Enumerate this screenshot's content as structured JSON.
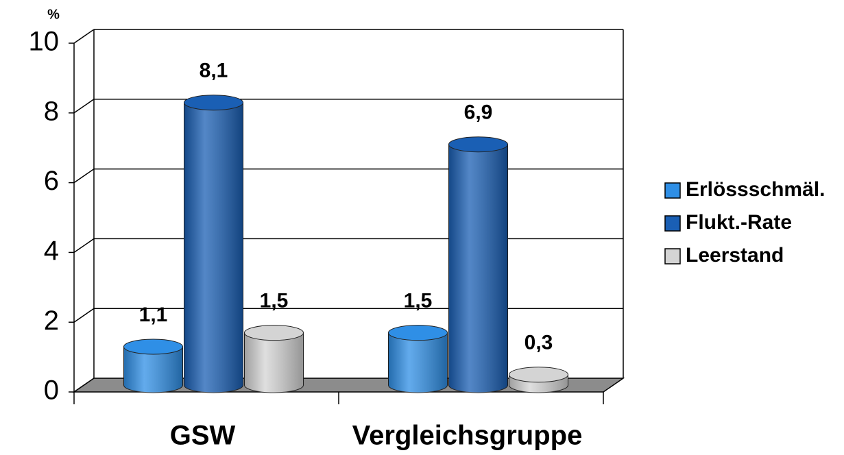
{
  "chart_data": {
    "type": "bar3d",
    "y_unit": "%",
    "categories": [
      "GSW",
      "Vergleichsgruppe"
    ],
    "series": [
      {
        "name": "Erlössschmäl.",
        "color": "#2f8fe6",
        "values": [
          1.1,
          1.5
        ],
        "value_labels": [
          "1,1",
          "1,5"
        ]
      },
      {
        "name": "Flukt.-Rate",
        "color": "#1a5fb4",
        "values": [
          8.1,
          6.9
        ],
        "value_labels": [
          "8,1",
          "6,9"
        ]
      },
      {
        "name": "Leerstand",
        "color": "#d4d4d4",
        "values": [
          1.5,
          0.3
        ],
        "value_labels": [
          "1,5",
          "0,3"
        ]
      }
    ],
    "ylim": [
      0,
      10
    ],
    "yticks": [
      0,
      2,
      4,
      6,
      8,
      10
    ],
    "grid": true,
    "legend": "right"
  }
}
